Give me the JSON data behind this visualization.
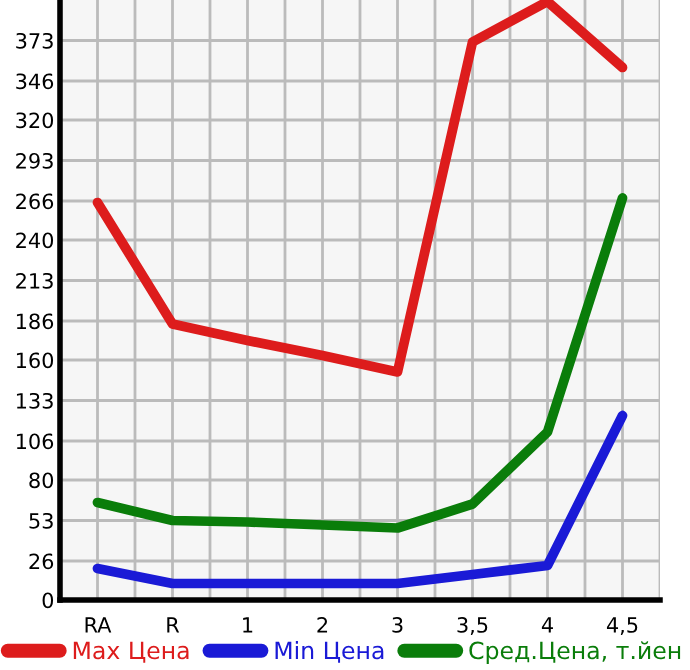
{
  "chart_data": {
    "type": "line",
    "categories": [
      "RA",
      "R",
      "1",
      "2",
      "3",
      "3,5",
      "4",
      "4,5"
    ],
    "series": [
      {
        "name": "Max Цена",
        "color": "#dd1c1c",
        "values": [
          265,
          184,
          173,
          163,
          152,
          372,
          399,
          355
        ]
      },
      {
        "name": "Min Цена",
        "color": "#1a1ad6",
        "values": [
          21,
          11,
          11,
          11,
          11,
          17,
          23,
          123
        ]
      },
      {
        "name": "Сред.Цена, т.йен",
        "color": "#0a7d0a",
        "values": [
          65,
          53,
          52,
          50,
          48,
          64,
          112,
          268
        ]
      }
    ],
    "ylim": [
      0,
      400
    ],
    "yticks": [
      0,
      26,
      53,
      80,
      106,
      133,
      160,
      186,
      213,
      240,
      266,
      293,
      320,
      346,
      373
    ],
    "grid": true,
    "legend": "bottom",
    "marker": "none",
    "line_style": "solid"
  }
}
